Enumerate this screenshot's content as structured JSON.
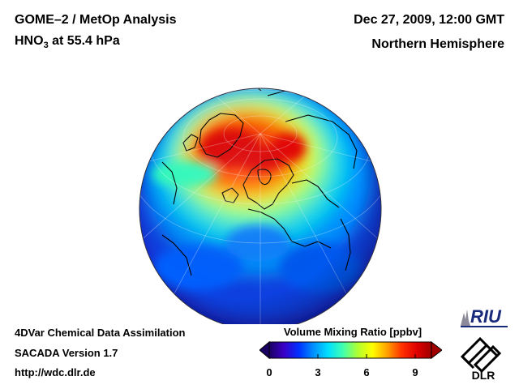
{
  "header": {
    "title_line1": "GOME–2 / MetOp Analysis",
    "species_prefix": "HNO",
    "species_subscript": "3",
    "species_suffix": " at 55.4 hPa",
    "datetime": "Dec 27, 2009, 12:00 GMT",
    "region": "Northern Hemisphere"
  },
  "footer": {
    "method": "4DVar Chemical Data Assimilation",
    "version": "SACADA Version 1.7",
    "url": "http://wdc.dlr.de"
  },
  "colorbar": {
    "title": "Volume Mixing Ratio [ppbv]",
    "min": 0,
    "max": 10,
    "ticks": [
      "0",
      "3",
      "6",
      "9"
    ],
    "tick_values": [
      0,
      3,
      6,
      9
    ],
    "colors": [
      "#1a0060",
      "#3b00c8",
      "#0030ff",
      "#0090ff",
      "#00e0ff",
      "#40ffb0",
      "#b0ff30",
      "#ffff00",
      "#ffa000",
      "#ff3000",
      "#e00000",
      "#a00000"
    ]
  },
  "logos": {
    "riu": "RIU",
    "dlr": "DLR"
  },
  "map": {
    "projection": "orthographic",
    "hemisphere": "north",
    "high_value_region": "Arctic / Greenland / Scandinavia",
    "high_value_color": "#e00000",
    "low_value_color": "#1a10a0"
  }
}
